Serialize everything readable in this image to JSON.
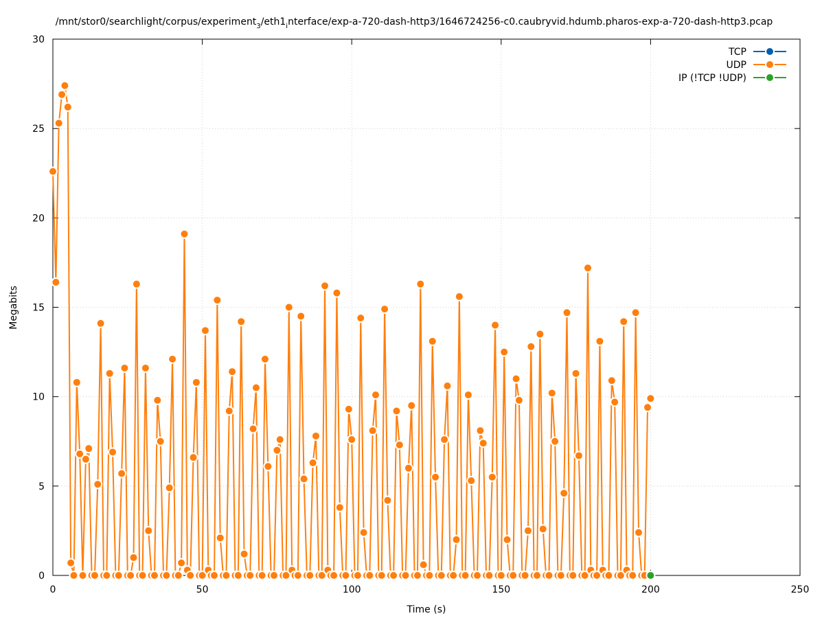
{
  "chart_data": {
    "type": "line",
    "title_main": "/mnt/stor0/searchlight/corpus/experiment",
    "title_sub1": "3",
    "title_mid": "/eth1",
    "title_sub2": "i",
    "title_end": "nterface/exp-a-720-dash-http3/1646724256-c0.caubryvid.hdumb.pharos-exp-a-720-dash-http3.pcap",
    "xlabel": "Time (s)",
    "ylabel": "Megabits",
    "xlim": [
      0,
      250
    ],
    "ylim": [
      0,
      30
    ],
    "xticks": [
      0,
      50,
      100,
      150,
      200,
      250
    ],
    "yticks": [
      0,
      5,
      10,
      15,
      20,
      25,
      30
    ],
    "grid": true,
    "legend_position": "top-right",
    "series": [
      {
        "name": "TCP",
        "color": "#0060ad",
        "x": [],
        "y": []
      },
      {
        "name": "UDP",
        "color": "#ff7f0e",
        "x": [
          0,
          1,
          2,
          3,
          4,
          5,
          6,
          7,
          8,
          9,
          10,
          11,
          12,
          13,
          14,
          15,
          16,
          17,
          18,
          19,
          20,
          21,
          22,
          23,
          24,
          25,
          26,
          27,
          28,
          29,
          30,
          31,
          32,
          33,
          34,
          35,
          36,
          37,
          38,
          39,
          40,
          41,
          42,
          43,
          44,
          45,
          46,
          47,
          48,
          49,
          50,
          51,
          52,
          53,
          54,
          55,
          56,
          57,
          58,
          59,
          60,
          61,
          62,
          63,
          64,
          65,
          66,
          67,
          68,
          69,
          70,
          71,
          72,
          73,
          74,
          75,
          76,
          77,
          78,
          79,
          80,
          81,
          82,
          83,
          84,
          85,
          86,
          87,
          88,
          89,
          90,
          91,
          92,
          93,
          94,
          95,
          96,
          97,
          98,
          99,
          100,
          101,
          102,
          103,
          104,
          105,
          106,
          107,
          108,
          109,
          110,
          111,
          112,
          113,
          114,
          115,
          116,
          117,
          118,
          119,
          120,
          121,
          122,
          123,
          124,
          125,
          126,
          127,
          128,
          129,
          130,
          131,
          132,
          133,
          134,
          135,
          136,
          137,
          138,
          139,
          140,
          141,
          142,
          143,
          144,
          145,
          146,
          147,
          148,
          149,
          150,
          151,
          152,
          153,
          154,
          155,
          156,
          157,
          158,
          159,
          160,
          161,
          162,
          163,
          164,
          165,
          166,
          167,
          168,
          169,
          170,
          171,
          172,
          173,
          174,
          175,
          176,
          177,
          178,
          179,
          180,
          181,
          182,
          183,
          184,
          185,
          186,
          187,
          188,
          189,
          190,
          191,
          192,
          193,
          194,
          195,
          196,
          197,
          198,
          199,
          200
        ],
        "y": [
          22.6,
          16.4,
          25.3,
          26.9,
          27.4,
          26.2,
          0.7,
          0,
          10.8,
          6.8,
          0,
          6.5,
          7.1,
          0,
          0,
          5.1,
          14.1,
          0,
          0,
          11.3,
          6.9,
          0,
          0,
          5.7,
          11.6,
          0,
          0,
          1.0,
          16.3,
          0,
          0,
          11.6,
          2.5,
          0,
          0,
          9.8,
          7.5,
          0,
          0,
          4.9,
          12.1,
          0,
          0,
          0.7,
          19.1,
          0.3,
          0,
          6.6,
          10.8,
          0,
          0,
          13.7,
          0.3,
          0,
          0,
          15.4,
          2.1,
          0,
          0,
          9.2,
          11.4,
          0,
          0,
          14.2,
          1.2,
          0,
          0,
          8.2,
          10.5,
          0,
          0,
          12.1,
          6.1,
          0,
          0,
          7.0,
          7.6,
          0,
          0,
          15.0,
          0.3,
          0,
          0,
          14.5,
          5.4,
          0,
          0,
          6.3,
          7.8,
          0,
          0,
          16.2,
          0.3,
          0,
          0,
          15.8,
          3.8,
          0,
          0,
          9.3,
          7.6,
          0,
          0,
          14.4,
          2.4,
          0,
          0,
          8.1,
          10.1,
          0,
          0,
          14.9,
          4.2,
          0,
          0,
          9.2,
          7.3,
          0,
          0,
          6.0,
          9.5,
          0,
          0,
          16.3,
          0.6,
          0,
          0,
          13.1,
          5.5,
          0,
          0,
          7.6,
          10.6,
          0,
          0,
          2.0,
          15.6,
          0,
          0,
          10.1,
          5.3,
          0,
          0,
          8.1,
          7.4,
          0,
          0,
          5.5,
          14.0,
          0,
          0,
          12.5,
          2.0,
          0,
          0,
          11.0,
          9.8,
          0,
          0,
          2.5,
          12.8,
          0,
          0,
          13.5,
          2.6,
          0,
          0,
          10.2,
          7.5,
          0,
          0,
          4.6,
          14.7,
          0,
          0,
          11.3,
          6.7,
          0,
          0,
          17.2,
          0.3,
          0,
          0,
          13.1,
          0.3,
          0,
          0,
          10.9,
          9.7,
          0,
          0,
          14.2,
          0.3,
          0,
          0,
          14.7,
          2.4,
          0,
          0,
          9.4,
          9.9
        ]
      },
      {
        "name": "IP (!TCP  !UDP)",
        "color": "#2ca02c",
        "x": [
          200
        ],
        "y": [
          0
        ]
      }
    ]
  }
}
